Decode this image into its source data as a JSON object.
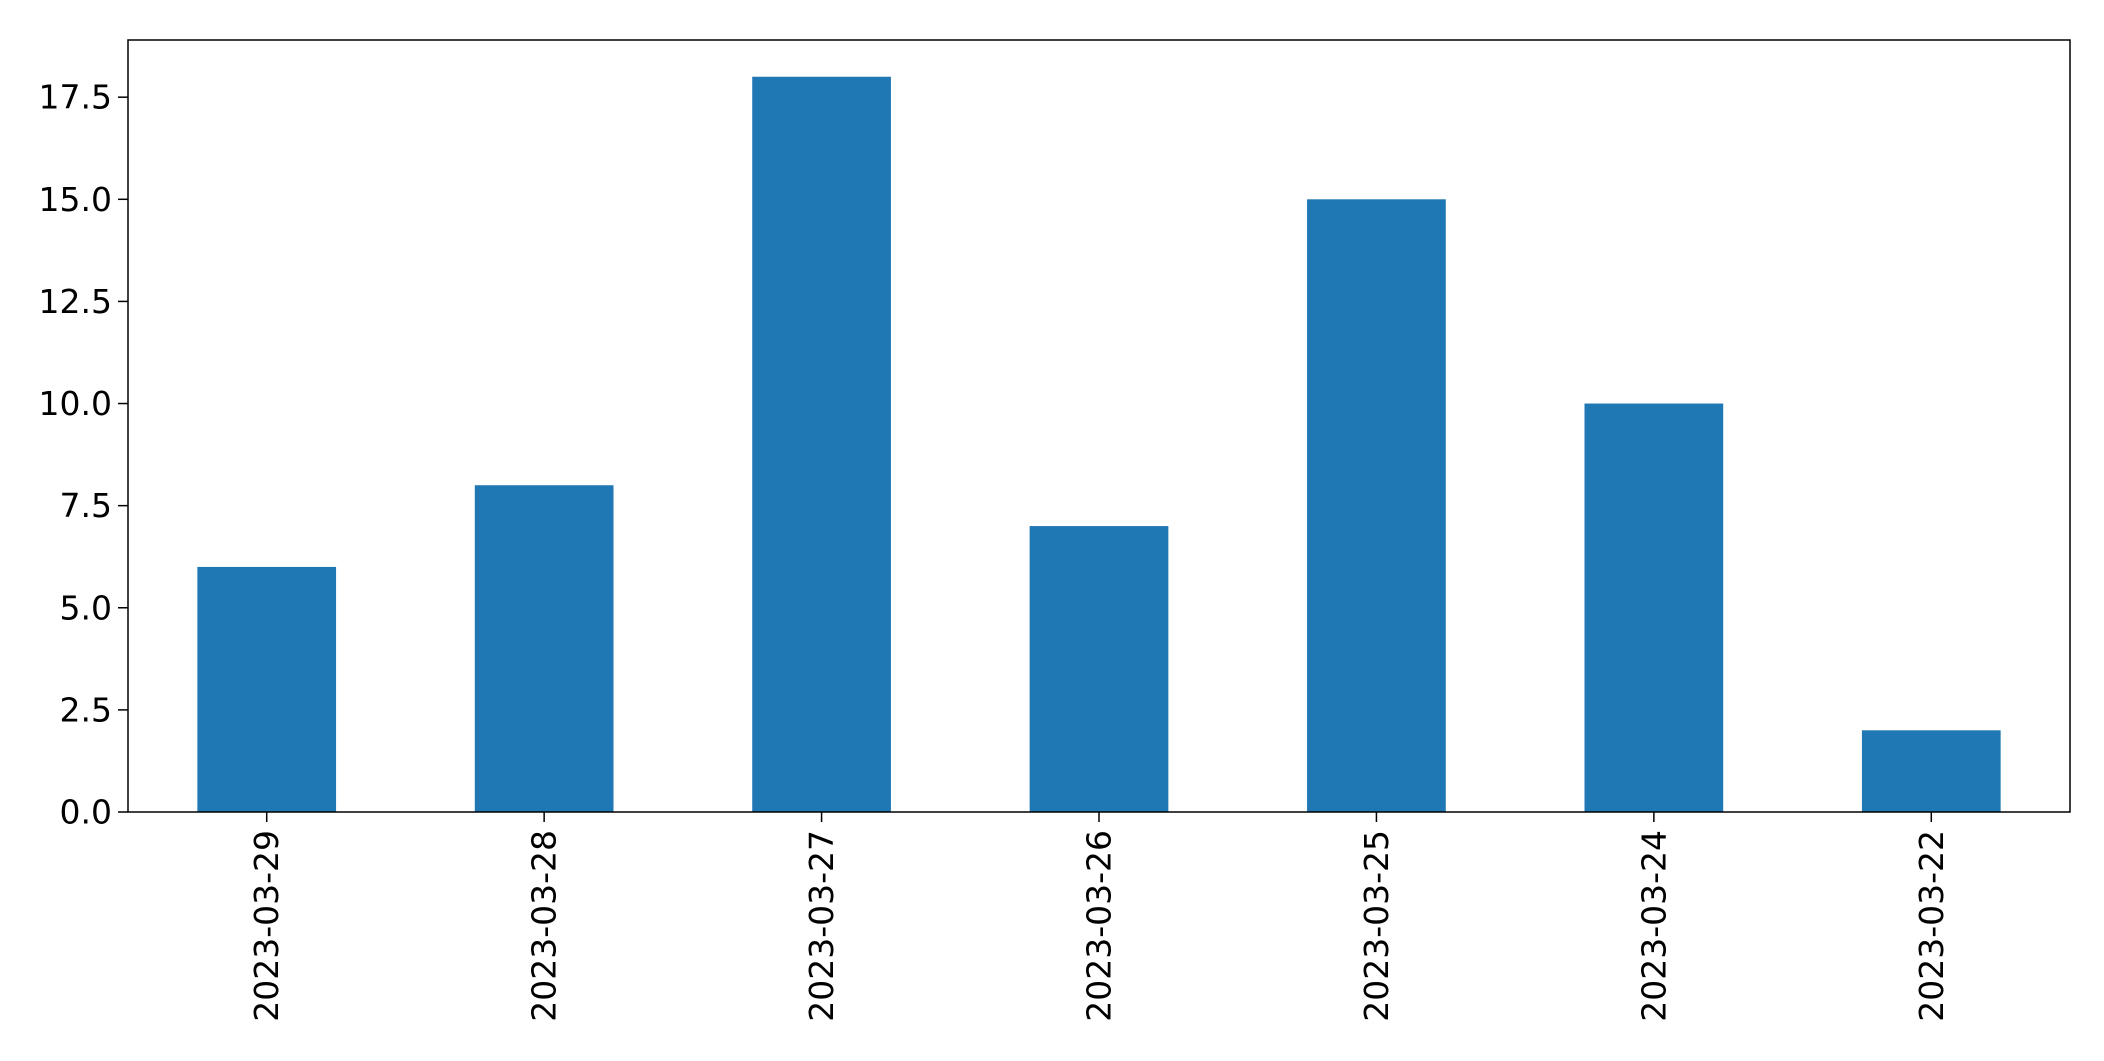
{
  "chart_data": {
    "type": "bar",
    "title": "",
    "xlabel": "",
    "ylabel": "",
    "categories": [
      "2023-03-29",
      "2023-03-28",
      "2023-03-27",
      "2023-03-26",
      "2023-03-25",
      "2023-03-24",
      "2023-03-22"
    ],
    "values": [
      6,
      8,
      18,
      7,
      15,
      10,
      2
    ],
    "ylim": [
      0,
      18.9
    ],
    "yticks": [
      0.0,
      2.5,
      5.0,
      7.5,
      10.0,
      12.5,
      15.0,
      17.5
    ],
    "ytick_labels": [
      "0.0",
      "2.5",
      "5.0",
      "7.5",
      "10.0",
      "12.5",
      "15.0",
      "17.5"
    ],
    "x_tick_rotation": "vertical",
    "grid": false,
    "legend": "none",
    "bar_color": "#1f77b4",
    "axis_color": "#000000"
  }
}
